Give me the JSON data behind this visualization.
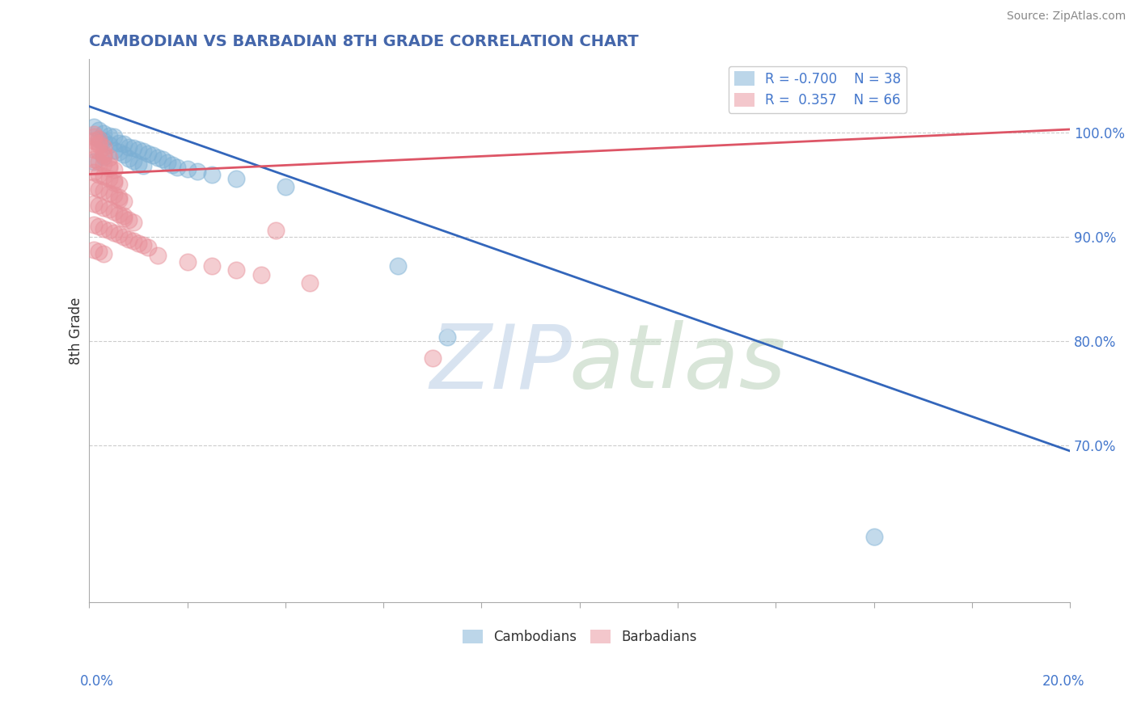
{
  "title": "CAMBODIAN VS BARBADIAN 8TH GRADE CORRELATION CHART",
  "source": "Source: ZipAtlas.com",
  "ylabel": "8th Grade",
  "ylim": [
    0.55,
    1.07
  ],
  "xlim": [
    0.0,
    0.2
  ],
  "ytick_labels": [
    "70.0%",
    "80.0%",
    "90.0%",
    "100.0%"
  ],
  "ytick_values": [
    0.7,
    0.8,
    0.9,
    1.0
  ],
  "xtick_values": [
    0.0,
    0.02,
    0.04,
    0.06,
    0.08,
    0.1,
    0.12,
    0.14,
    0.16,
    0.18,
    0.2
  ],
  "cambodian_color": "#7bafd4",
  "barbadian_color": "#e8909a",
  "cambodian_R": -0.7,
  "cambodian_N": 38,
  "barbadian_R": 0.357,
  "barbadian_N": 66,
  "cam_line_x0": 0.0,
  "cam_line_y0": 1.025,
  "cam_line_x1": 0.2,
  "cam_line_y1": 0.695,
  "bar_line_x0": 0.0,
  "bar_line_y0": 0.96,
  "bar_line_x1": 0.2,
  "bar_line_y1": 1.003,
  "cambodian_scatter": [
    [
      0.001,
      1.005
    ],
    [
      0.002,
      1.002
    ],
    [
      0.003,
      0.999
    ],
    [
      0.004,
      0.997
    ],
    [
      0.005,
      0.996
    ],
    [
      0.002,
      0.994
    ],
    [
      0.003,
      0.992
    ],
    [
      0.006,
      0.99
    ],
    [
      0.007,
      0.989
    ],
    [
      0.004,
      0.988
    ],
    [
      0.008,
      0.986
    ],
    [
      0.009,
      0.985
    ],
    [
      0.01,
      0.984
    ],
    [
      0.005,
      0.983
    ],
    [
      0.011,
      0.982
    ],
    [
      0.006,
      0.981
    ],
    [
      0.012,
      0.98
    ],
    [
      0.007,
      0.979
    ],
    [
      0.013,
      0.978
    ],
    [
      0.003,
      0.977
    ],
    [
      0.014,
      0.976
    ],
    [
      0.008,
      0.975
    ],
    [
      0.015,
      0.974
    ],
    [
      0.009,
      0.973
    ],
    [
      0.001,
      0.972
    ],
    [
      0.016,
      0.971
    ],
    [
      0.01,
      0.97
    ],
    [
      0.017,
      0.969
    ],
    [
      0.011,
      0.968
    ],
    [
      0.018,
      0.967
    ],
    [
      0.02,
      0.965
    ],
    [
      0.022,
      0.963
    ],
    [
      0.025,
      0.96
    ],
    [
      0.03,
      0.956
    ],
    [
      0.04,
      0.948
    ],
    [
      0.063,
      0.872
    ],
    [
      0.073,
      0.804
    ],
    [
      0.16,
      0.613
    ]
  ],
  "barbadian_scatter": [
    [
      0.001,
      0.998
    ],
    [
      0.001,
      0.996
    ],
    [
      0.002,
      0.994
    ],
    [
      0.001,
      0.992
    ],
    [
      0.002,
      0.99
    ],
    [
      0.002,
      0.988
    ],
    [
      0.003,
      0.986
    ],
    [
      0.001,
      0.984
    ],
    [
      0.002,
      0.982
    ],
    [
      0.003,
      0.98
    ],
    [
      0.003,
      0.978
    ],
    [
      0.004,
      0.976
    ],
    [
      0.001,
      0.974
    ],
    [
      0.002,
      0.972
    ],
    [
      0.003,
      0.97
    ],
    [
      0.004,
      0.968
    ],
    [
      0.004,
      0.966
    ],
    [
      0.005,
      0.964
    ],
    [
      0.001,
      0.962
    ],
    [
      0.002,
      0.96
    ],
    [
      0.003,
      0.958
    ],
    [
      0.004,
      0.956
    ],
    [
      0.005,
      0.954
    ],
    [
      0.005,
      0.952
    ],
    [
      0.006,
      0.95
    ],
    [
      0.001,
      0.948
    ],
    [
      0.002,
      0.946
    ],
    [
      0.003,
      0.944
    ],
    [
      0.004,
      0.942
    ],
    [
      0.005,
      0.94
    ],
    [
      0.006,
      0.938
    ],
    [
      0.006,
      0.936
    ],
    [
      0.007,
      0.934
    ],
    [
      0.001,
      0.932
    ],
    [
      0.002,
      0.93
    ],
    [
      0.003,
      0.928
    ],
    [
      0.004,
      0.926
    ],
    [
      0.005,
      0.924
    ],
    [
      0.006,
      0.922
    ],
    [
      0.007,
      0.92
    ],
    [
      0.007,
      0.918
    ],
    [
      0.008,
      0.916
    ],
    [
      0.009,
      0.914
    ],
    [
      0.001,
      0.912
    ],
    [
      0.002,
      0.91
    ],
    [
      0.003,
      0.908
    ],
    [
      0.004,
      0.906
    ],
    [
      0.005,
      0.904
    ],
    [
      0.006,
      0.902
    ],
    [
      0.007,
      0.9
    ],
    [
      0.008,
      0.898
    ],
    [
      0.009,
      0.896
    ],
    [
      0.01,
      0.894
    ],
    [
      0.011,
      0.892
    ],
    [
      0.012,
      0.89
    ],
    [
      0.001,
      0.888
    ],
    [
      0.002,
      0.886
    ],
    [
      0.003,
      0.884
    ],
    [
      0.014,
      0.882
    ],
    [
      0.02,
      0.876
    ],
    [
      0.025,
      0.872
    ],
    [
      0.03,
      0.868
    ],
    [
      0.035,
      0.864
    ],
    [
      0.045,
      0.856
    ],
    [
      0.038,
      0.906
    ],
    [
      0.07,
      0.784
    ]
  ],
  "background_color": "#ffffff",
  "grid_color": "#cccccc",
  "title_color": "#4466aa",
  "source_color": "#888888"
}
